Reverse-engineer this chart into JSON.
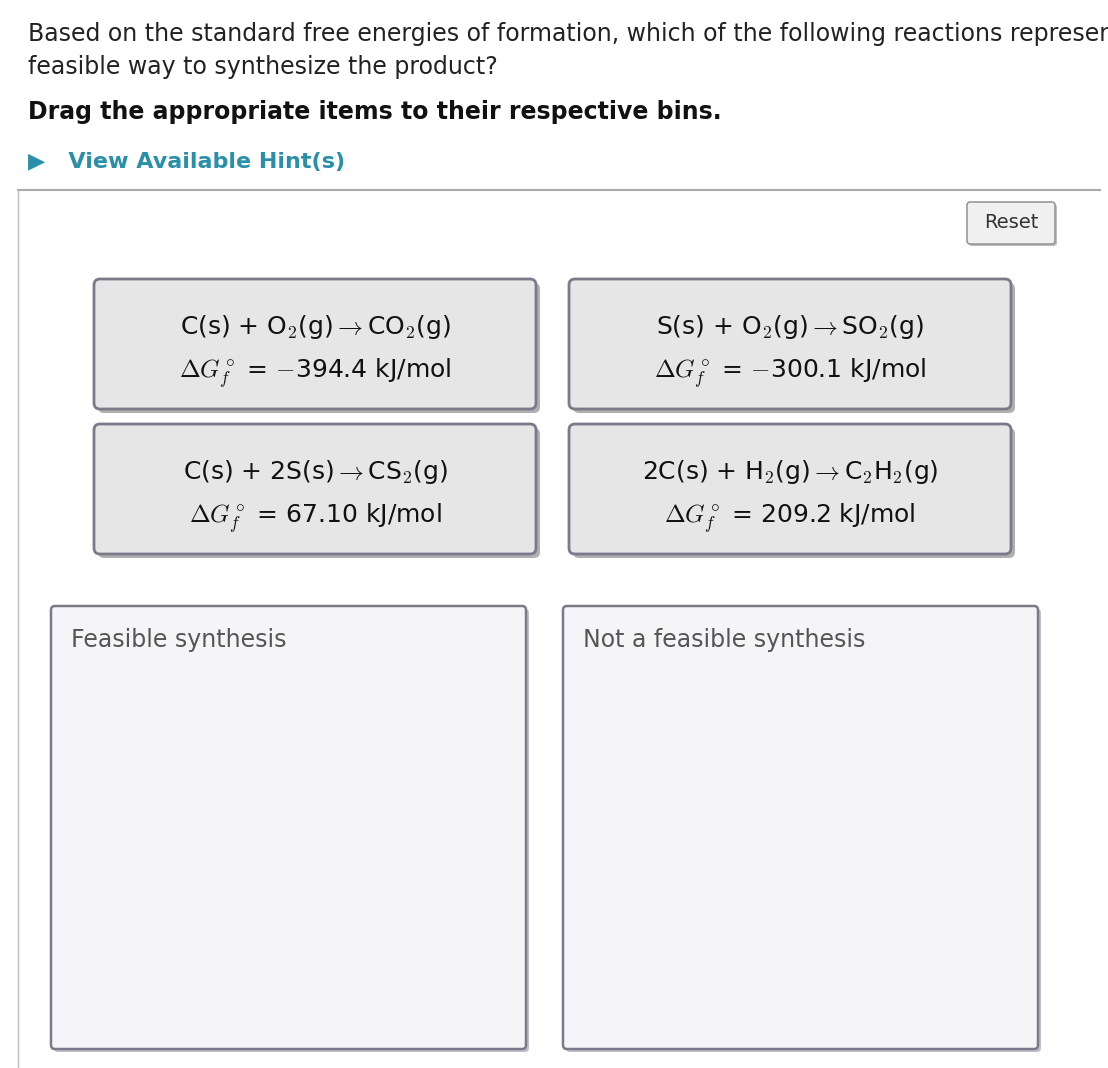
{
  "title_line1": "Based on the standard free energies of formation, which of the following reactions represent",
  "title_line2": "feasible way to synthesize the product?",
  "subtitle": "Drag the appropriate items to their respective bins.",
  "hint_text": "▶   View Available Hint(s)",
  "hint_color": "#2a8fa8",
  "reset_text": "Reset",
  "background_color": "#ffffff",
  "card_bg": "#e6e6e6",
  "card_border": "#7a7a8a",
  "bin_bg": "#f5f5f7",
  "bin_border": "#7a7a8a",
  "reaction_cards": [
    {
      "line1": "C(s) + O$_2$(g)$\\rightarrow$CO$_2$(g)",
      "line2": "$\\Delta G^\\circ_f$ = $-$394.4 kJ/mol",
      "col": 0,
      "row": 0
    },
    {
      "line1": "S(s) + O$_2$(g)$\\rightarrow$SO$_2$(g)",
      "line2": "$\\Delta G^\\circ_f$ = $-$300.1 kJ/mol",
      "col": 1,
      "row": 0
    },
    {
      "line1": "C(s) + 2S(s)$\\rightarrow$CS$_2$(g)",
      "line2": "$\\Delta G^\\circ_f$ = 67.10 kJ/mol",
      "col": 0,
      "row": 1
    },
    {
      "line1": "2C(s) + H$_2$(g)$\\rightarrow$C$_2$H$_2$(g)",
      "line2": "$\\Delta G^\\circ_f$ = 209.2 kJ/mol",
      "col": 1,
      "row": 1
    }
  ],
  "bin_labels": [
    "Feasible synthesis",
    "Not a feasible synthesis"
  ],
  "title_fontsize": 17,
  "subtitle_fontsize": 17,
  "hint_fontsize": 16,
  "card_fontsize": 16,
  "bin_label_fontsize": 17,
  "reset_fontsize": 14
}
